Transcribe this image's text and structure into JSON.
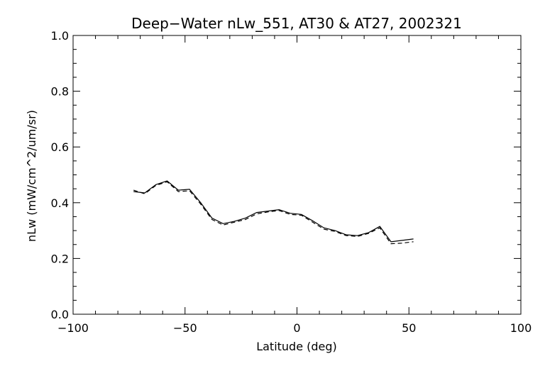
{
  "chart_data": {
    "type": "line",
    "title": "Deep−Water nLw_551, AT30 & AT27, 2002321",
    "xlabel": "Latitude (deg)",
    "ylabel": "nLw (mW/cm^2/um/sr)",
    "xlim": [
      -100,
      100
    ],
    "ylim": [
      0.0,
      1.0
    ],
    "xticks": [
      -100,
      -50,
      0,
      50,
      100
    ],
    "xtick_labels": [
      "−100",
      "−50",
      "0",
      "50",
      "100"
    ],
    "yticks": [
      0.0,
      0.2,
      0.4,
      0.6,
      0.8,
      1.0
    ],
    "ytick_labels": [
      "0.0",
      "0.2",
      "0.4",
      "0.6",
      "0.8",
      "1.0"
    ],
    "grid": false,
    "series": [
      {
        "style": "solid",
        "color": "#000000",
        "x": [
          -73,
          -68,
          -63,
          -58,
          -53,
          -48,
          -43,
          -38,
          -33,
          -28,
          -23,
          -18,
          -13,
          -8,
          -3,
          2,
          7,
          12,
          17,
          22,
          27,
          32,
          37,
          42,
          47,
          52
        ],
        "y": [
          0.44,
          0.435,
          0.465,
          0.478,
          0.445,
          0.448,
          0.4,
          0.345,
          0.325,
          0.333,
          0.345,
          0.365,
          0.37,
          0.375,
          0.362,
          0.358,
          0.335,
          0.31,
          0.3,
          0.285,
          0.282,
          0.293,
          0.315,
          0.26,
          0.265,
          0.27
        ]
      },
      {
        "style": "dashed",
        "color": "#000000",
        "x": [
          -73,
          -68,
          -63,
          -58,
          -53,
          -48,
          -43,
          -38,
          -33,
          -28,
          -23,
          -18,
          -13,
          -8,
          -3,
          2,
          7,
          12,
          17,
          22,
          27,
          32,
          37,
          42,
          47,
          52
        ],
        "y": [
          0.445,
          0.432,
          0.462,
          0.475,
          0.44,
          0.443,
          0.395,
          0.34,
          0.32,
          0.33,
          0.34,
          0.36,
          0.367,
          0.372,
          0.358,
          0.355,
          0.33,
          0.305,
          0.297,
          0.282,
          0.279,
          0.29,
          0.31,
          0.253,
          0.255,
          0.26
        ]
      }
    ]
  }
}
